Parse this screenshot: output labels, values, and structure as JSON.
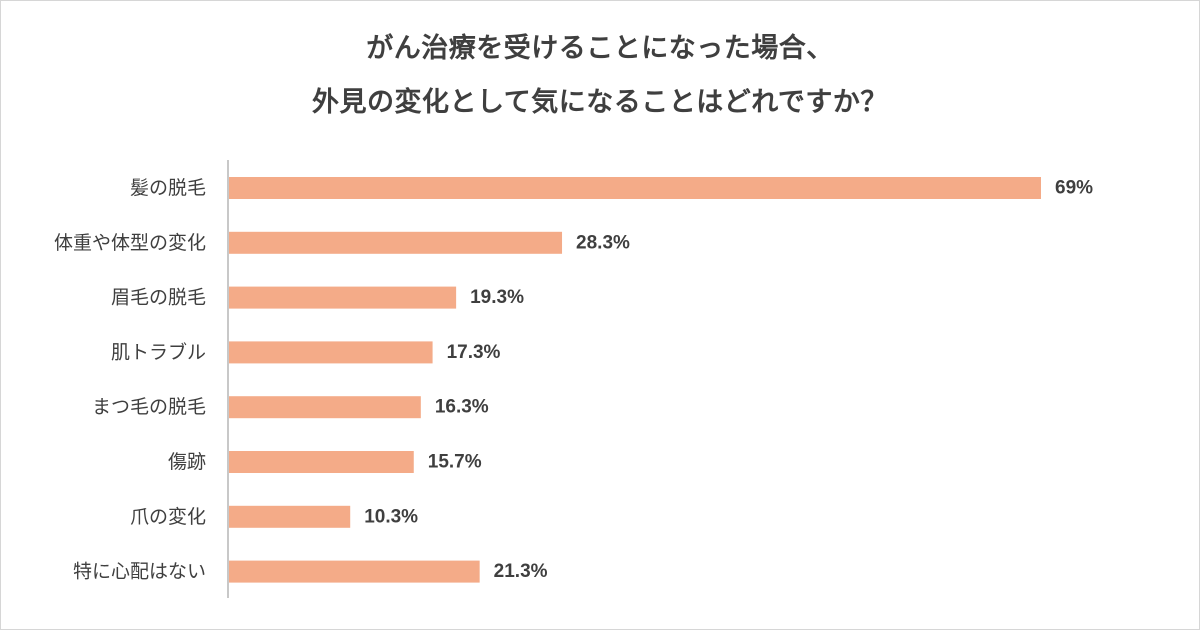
{
  "chart_data": {
    "type": "bar",
    "orientation": "horizontal",
    "title_lines": [
      "がん治療を受けることになった場合、",
      "外見の変化として気になることはどれですか？"
    ],
    "categories": [
      "髪の脱毛",
      "体重や体型の変化",
      "眉毛の脱毛",
      "肌トラブル",
      "まつ毛の脱毛",
      "傷跡",
      "爪の変化",
      "特に心配はない"
    ],
    "values": [
      69,
      28.3,
      19.3,
      17.3,
      16.3,
      15.7,
      10.3,
      21.3
    ],
    "value_labels": [
      "69%",
      "28.3%",
      "19.3%",
      "17.3%",
      "16.3%",
      "15.7%",
      "10.3%",
      "21.3%"
    ],
    "unit": "%",
    "xlim": [
      0,
      69
    ],
    "grid": false,
    "legend": "none",
    "bar_color": "#f4ab88",
    "axis_color": "#c8c8c8",
    "text_color": "#3f3f3f"
  }
}
